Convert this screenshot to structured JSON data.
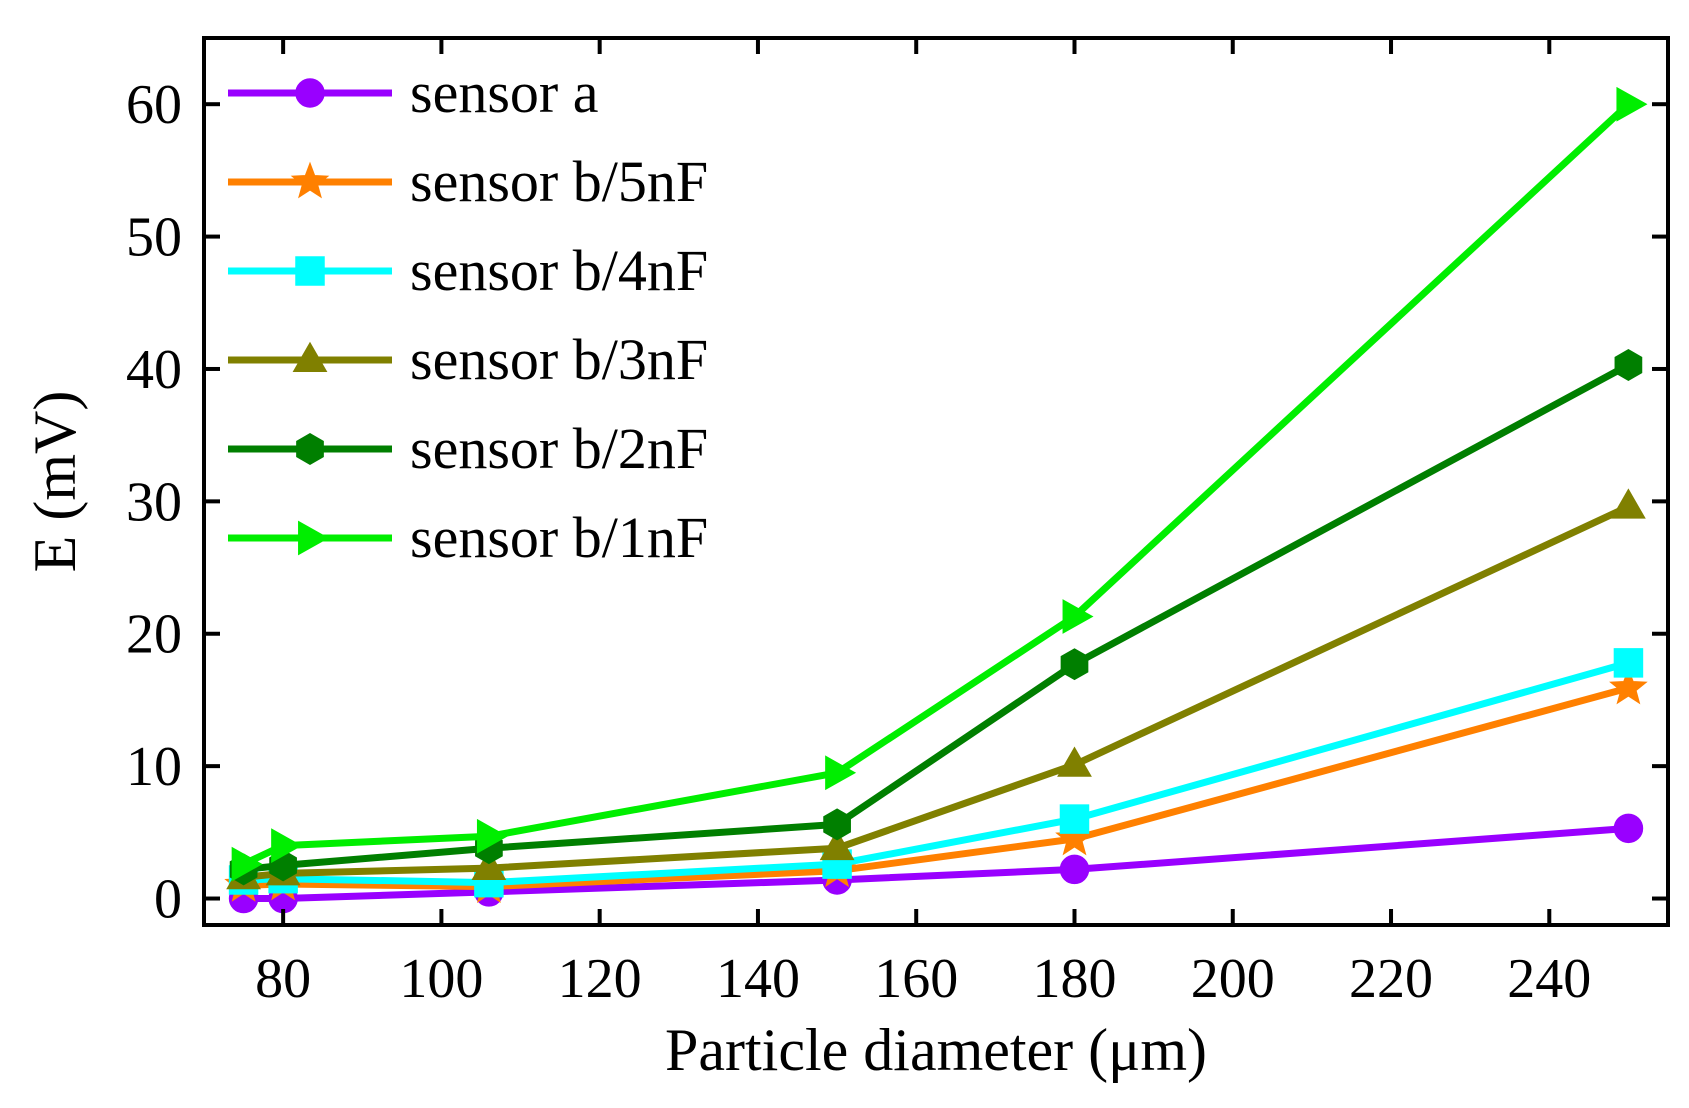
{
  "chart_data": {
    "type": "line",
    "title": "",
    "xlabel": "Particle diameter (μm)",
    "ylabel": "E (mV)",
    "xlim": [
      70,
      255
    ],
    "ylim": [
      -2,
      65
    ],
    "xticks": [
      80,
      100,
      120,
      140,
      160,
      180,
      200,
      220,
      240
    ],
    "yticks": [
      0,
      10,
      20,
      30,
      40,
      50,
      60
    ],
    "grid": false,
    "legend_position": "top-left",
    "x": [
      75,
      80,
      106,
      150,
      180,
      250
    ],
    "series": [
      {
        "name": "sensor a",
        "color": "#9900FF",
        "marker": "circle",
        "values": [
          0.0,
          0.0,
          0.5,
          1.4,
          2.2,
          5.3
        ]
      },
      {
        "name": "sensor b/5nF",
        "color": "#FF8000",
        "marker": "star",
        "values": [
          1.0,
          1.1,
          0.9,
          2.1,
          4.5,
          15.9
        ]
      },
      {
        "name": "sensor b/4nF",
        "color": "#00FFFF",
        "marker": "square",
        "values": [
          1.4,
          1.5,
          1.2,
          2.6,
          6.0,
          17.8
        ]
      },
      {
        "name": "sensor b/3nF",
        "color": "#808000",
        "marker": "triangle-up",
        "values": [
          1.6,
          1.9,
          2.3,
          3.8,
          10.1,
          29.6
        ]
      },
      {
        "name": "sensor b/2nF",
        "color": "#007F00",
        "marker": "hexagon",
        "values": [
          2.2,
          2.5,
          3.8,
          5.6,
          17.7,
          40.3
        ]
      },
      {
        "name": "sensor b/1nF",
        "color": "#00EE00",
        "marker": "triangle-right",
        "values": [
          2.6,
          4.0,
          4.7,
          9.5,
          21.3,
          60.0
        ]
      }
    ]
  }
}
